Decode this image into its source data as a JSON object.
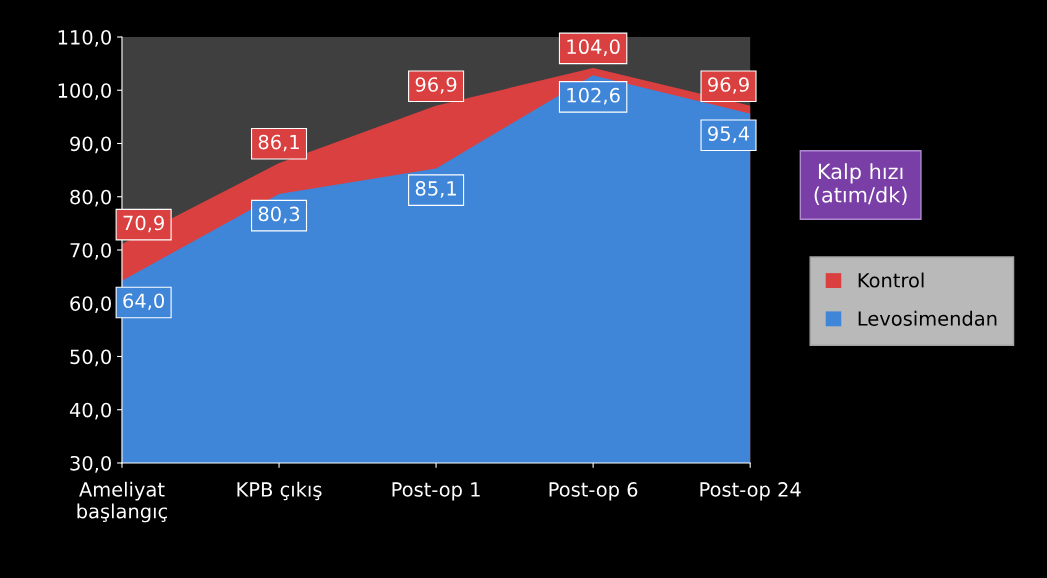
{
  "chart_data": {
    "type": "area",
    "title": "Kalp hızı\n(atım/dk)",
    "categories": [
      "Ameliyat\nbaşlangıç",
      "KPB çıkış",
      "Post-op 1",
      "Post-op 6",
      "Post-op 24"
    ],
    "series": [
      {
        "name": "Kontrol",
        "color": "#d9403f",
        "values": [
          70.9,
          86.1,
          96.9,
          104.0,
          96.9
        ],
        "value_labels": [
          "70,9",
          "86,1",
          "96,9",
          "104,0",
          "96,9"
        ]
      },
      {
        "name": "Levosimendan",
        "color": "#3f86d9",
        "values": [
          64.0,
          80.3,
          85.1,
          102.6,
          95.4
        ],
        "value_labels": [
          "64,0",
          "80,3",
          "85,1",
          "102,6",
          "95,4"
        ]
      }
    ],
    "ylim": [
      30,
      110
    ],
    "yticks": [
      {
        "value": 30,
        "label": "30,0"
      },
      {
        "value": 40,
        "label": "40,0"
      },
      {
        "value": 50,
        "label": "50,0"
      },
      {
        "value": 60,
        "label": "60,0"
      },
      {
        "value": 70,
        "label": "70,0"
      },
      {
        "value": 80,
        "label": "80,0"
      },
      {
        "value": 90,
        "label": "90,0"
      },
      {
        "value": 100,
        "label": "100,0"
      },
      {
        "value": 110,
        "label": "110,0"
      }
    ],
    "legend": "right",
    "grid": false
  }
}
